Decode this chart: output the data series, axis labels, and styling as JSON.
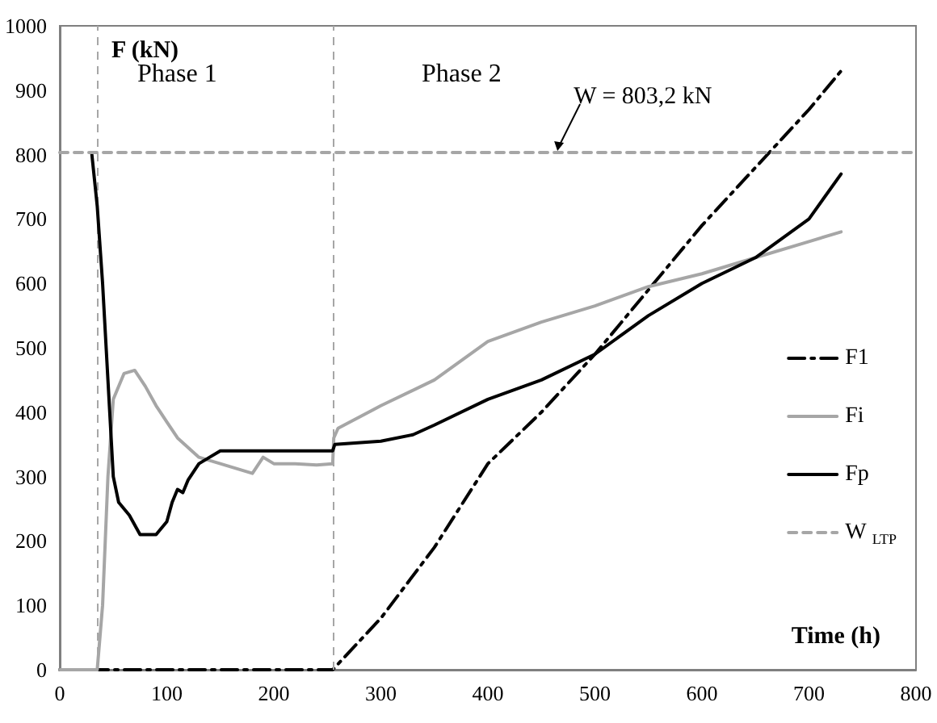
{
  "chart_data": {
    "type": "line",
    "xlabel": "Time (h)",
    "ylabel": "F (kN)",
    "xlim": [
      0,
      800
    ],
    "xticks": [
      0,
      100,
      200,
      300,
      400,
      500,
      600,
      700,
      800
    ],
    "ylim": [
      0,
      1000
    ],
    "yticks": [
      0,
      100,
      200,
      300,
      400,
      500,
      600,
      700,
      800,
      900,
      1000
    ],
    "grid": false,
    "legend": "right",
    "marker": "none",
    "series": [
      {
        "name": "F1",
        "color": "#000000",
        "line_style": "dashdot",
        "x": [
          0,
          35,
          255,
          300,
          350,
          400,
          450,
          500,
          550,
          600,
          650,
          700,
          730
        ],
        "values": [
          0,
          0,
          0,
          80,
          190,
          320,
          400,
          490,
          590,
          690,
          780,
          870,
          930
        ]
      },
      {
        "name": "Fi",
        "color": "#a6a6a6",
        "line_style": "solid",
        "x": [
          0,
          35,
          40,
          45,
          50,
          60,
          70,
          80,
          90,
          100,
          110,
          120,
          130,
          150,
          170,
          180,
          190,
          200,
          220,
          240,
          255,
          256,
          260,
          300,
          350,
          400,
          450,
          500,
          550,
          600,
          650,
          700,
          730
        ],
        "values": [
          0,
          0,
          100,
          300,
          420,
          460,
          465,
          440,
          410,
          385,
          360,
          345,
          330,
          320,
          310,
          305,
          330,
          320,
          320,
          318,
          320,
          360,
          375,
          410,
          450,
          510,
          540,
          565,
          595,
          615,
          640,
          665,
          680
        ]
      },
      {
        "name": "Fp",
        "color": "#000000",
        "line_style": "solid",
        "x": [
          30,
          35,
          40,
          45,
          50,
          55,
          65,
          75,
          90,
          100,
          105,
          110,
          115,
          120,
          130,
          140,
          150,
          200,
          255,
          257,
          300,
          330,
          350,
          400,
          450,
          500,
          550,
          600,
          650,
          700,
          730
        ],
        "values": [
          800,
          720,
          600,
          450,
          300,
          260,
          240,
          210,
          210,
          230,
          260,
          280,
          275,
          295,
          320,
          330,
          340,
          340,
          340,
          350,
          355,
          365,
          380,
          420,
          450,
          490,
          550,
          600,
          640,
          700,
          770
        ]
      },
      {
        "name": "W $_{LTP}$",
        "color": "#a6a6a6",
        "line_style": "dashed",
        "x": [
          0,
          800
        ],
        "values": [
          803.2,
          803.2
        ]
      }
    ],
    "ref_lines": [
      {
        "axis": "x",
        "value": 35,
        "color": "#a6a6a6",
        "line_style": "dashed"
      },
      {
        "axis": "x",
        "value": 255,
        "color": "#a6a6a6",
        "line_style": "dashed"
      }
    ],
    "annotations": [
      "Phase 1",
      "Phase 2",
      {
        "text": "W = 803,2 kN",
        "x": 465,
        "y": 803.2
      }
    ]
  }
}
